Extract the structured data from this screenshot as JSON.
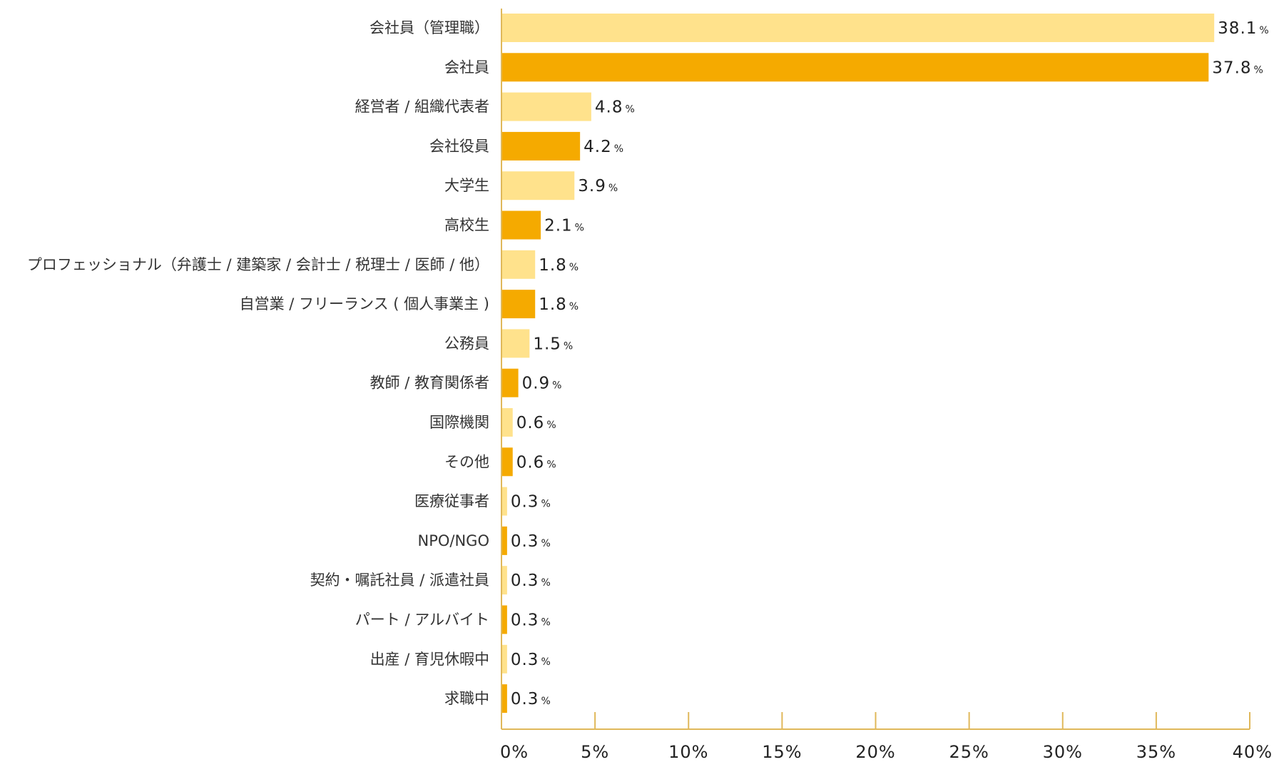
{
  "chart_data": {
    "type": "bar",
    "orientation": "horizontal",
    "title": "",
    "xlabel": "",
    "ylabel": "",
    "xlim": [
      0,
      40
    ],
    "grid": false,
    "legend": "none",
    "value_unit": "%",
    "colors": {
      "light": "#FFE28C",
      "dark": "#F5AA00",
      "axis": "#E0B85A"
    },
    "categories": [
      "会社員（管理職）",
      "会社員",
      "経営者 / 組織代表者",
      "会社役員",
      "大学生",
      "高校生",
      "プロフェッショナル（弁護士 / 建築家 / 会計士 / 税理士 / 医師 / 他）",
      "自営業 / フリーランス ( 個人事業主 )",
      "公務員",
      "教師 / 教育関係者",
      "国際機関",
      "その他",
      "医療従事者",
      "NPO/NGO",
      "契約・嘱託社員 / 派遣社員",
      "パート / アルバイト",
      "出産 / 育児休暇中",
      "求職中"
    ],
    "values": [
      38.1,
      37.8,
      4.8,
      4.2,
      3.9,
      2.1,
      1.8,
      1.8,
      1.5,
      0.9,
      0.6,
      0.6,
      0.3,
      0.3,
      0.3,
      0.3,
      0.3,
      0.3
    ],
    "value_labels": [
      "38.1",
      "37.8",
      "4.8",
      "4.2",
      "3.9",
      "2.1",
      "1.8",
      "1.8",
      "1.5",
      "0.9",
      "0.6",
      "0.6",
      "0.3",
      "0.3",
      "0.3",
      "0.3",
      "0.3",
      "0.3"
    ],
    "x_ticks": [
      0,
      5,
      10,
      15,
      20,
      25,
      30,
      35,
      40
    ],
    "x_tick_labels": [
      "0%",
      "5%",
      "10%",
      "15%",
      "20%",
      "25%",
      "30%",
      "35%",
      "40%"
    ]
  }
}
